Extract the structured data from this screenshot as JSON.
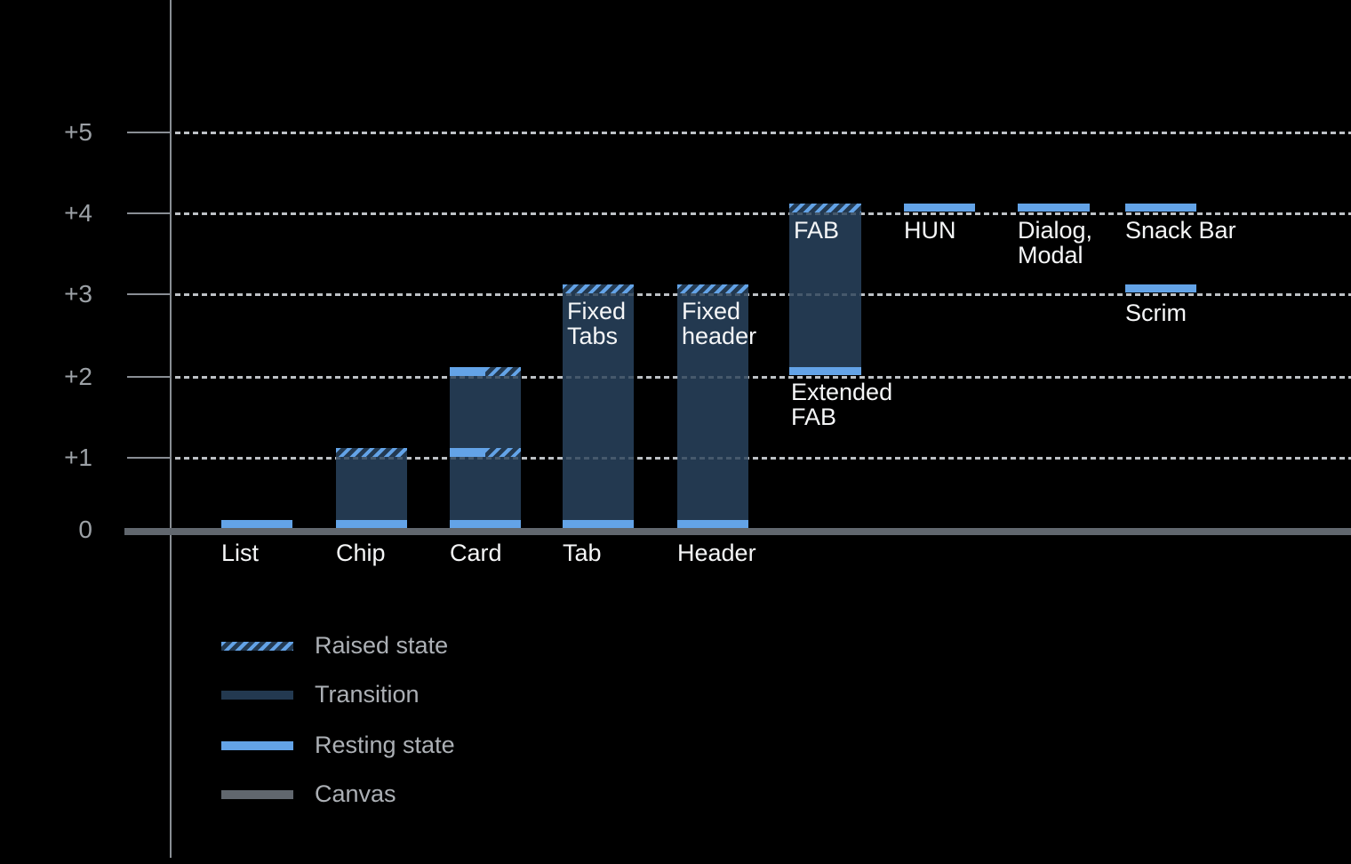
{
  "colors": {
    "background": "#000000",
    "resting_state": "#63A3E7",
    "transition": "#233950",
    "canvas": "#61676E",
    "grid_dots": "#B0B5BA",
    "axis_line": "#898E94",
    "axis_label_text": "#9CA1A6",
    "bar_label_text": "#F5F6F7",
    "legend_text": "#ACB0B5"
  },
  "chart_data": {
    "type": "bar",
    "title": "",
    "xlabel": "",
    "ylabel": "",
    "y_axis": {
      "tick_labels": [
        "+5",
        "+4",
        "+3",
        "+2",
        "+1",
        "0"
      ],
      "range": [
        0,
        5
      ],
      "gridlines": "dotted horizontal lines at each elevation level"
    },
    "legend": {
      "position": "bottom-left",
      "items": [
        {
          "label": "Raised state",
          "style": "hatched-blue-stripes"
        },
        {
          "label": "Transition",
          "style": "solid-dark-navy"
        },
        {
          "label": "Resting state",
          "style": "solid-light-blue"
        },
        {
          "label": "Canvas",
          "style": "solid-gray"
        }
      ]
    },
    "components": [
      {
        "label": "List",
        "resting_elevation": 0,
        "raised_elevation": null,
        "transition": null,
        "bands": [
          {
            "elevation": 0,
            "type": "resting"
          }
        ]
      },
      {
        "label": "Chip",
        "resting_elevation": 0,
        "raised_elevation": 1,
        "transition": [
          0,
          1
        ],
        "bands": [
          {
            "elevation": 0,
            "type": "resting"
          },
          {
            "elevation": 1,
            "type": "raised"
          }
        ]
      },
      {
        "label": "Card",
        "resting_elevation": 0,
        "raised_elevation": 2,
        "transition": [
          0,
          2
        ],
        "bands": [
          {
            "elevation": 0,
            "type": "resting"
          },
          {
            "elevation": 1,
            "type": "resting+raised"
          },
          {
            "elevation": 2,
            "type": "resting+raised"
          }
        ]
      },
      {
        "label": "Tab",
        "bar_label": "Fixed Tabs",
        "resting_elevation": 0,
        "raised_elevation": 3,
        "transition": [
          0,
          3
        ],
        "bands": [
          {
            "elevation": 0,
            "type": "resting"
          },
          {
            "elevation": 3,
            "type": "raised"
          }
        ]
      },
      {
        "label": "Header",
        "bar_label": "Fixed header",
        "resting_elevation": 0,
        "raised_elevation": 3,
        "transition": [
          0,
          3
        ],
        "bands": [
          {
            "elevation": 0,
            "type": "resting"
          },
          {
            "elevation": 3,
            "type": "raised"
          }
        ]
      },
      {
        "label": "Extended FAB",
        "bar_label": "FAB",
        "resting_elevation": 2,
        "raised_elevation": 4,
        "transition": [
          2,
          4
        ],
        "bands": [
          {
            "elevation": 2,
            "type": "resting"
          },
          {
            "elevation": 4,
            "type": "raised"
          }
        ]
      },
      {
        "label": "HUN",
        "resting_elevation": 4,
        "raised_elevation": null,
        "transition": null,
        "bands": [
          {
            "elevation": 4,
            "type": "resting"
          }
        ]
      },
      {
        "label": "Dialog, Modal",
        "resting_elevation": 4,
        "raised_elevation": null,
        "transition": null,
        "bands": [
          {
            "elevation": 4,
            "type": "resting"
          }
        ]
      },
      {
        "label": "Snack Bar",
        "resting_elevation": 4,
        "raised_elevation": null,
        "transition": null,
        "bands": [
          {
            "elevation": 4,
            "type": "resting"
          }
        ]
      },
      {
        "label": "Scrim",
        "resting_elevation": 3,
        "raised_elevation": null,
        "transition": null,
        "bands": [
          {
            "elevation": 3,
            "type": "resting"
          }
        ]
      }
    ]
  }
}
